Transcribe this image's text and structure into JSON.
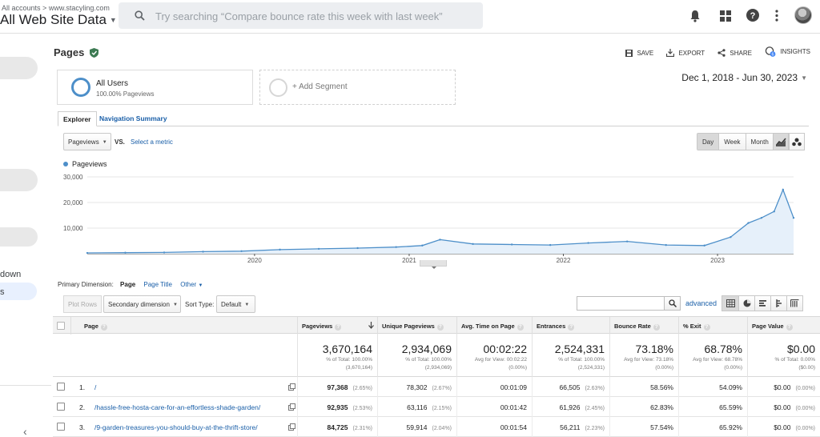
{
  "header": {
    "breadcrumb_accounts": "All accounts",
    "breadcrumb_sep": ">",
    "breadcrumb_site": "www.stacyling.com",
    "property": "All Web Site Data",
    "search_placeholder": "Try searching “Compare bounce rate this week with last week”",
    "icons": [
      "bell-icon",
      "apps-grid-icon",
      "help-icon",
      "more-vert-icon"
    ]
  },
  "sidebar": {
    "item_a": "down",
    "item_b": "s"
  },
  "page": {
    "title": "Pages",
    "actions": {
      "save": "SAVE",
      "export": "EXPORT",
      "share": "SHARE",
      "insights": "INSIGHTS",
      "insights_badge": "6"
    }
  },
  "segments": {
    "active_name": "All Users",
    "active_sub": "100.00% Pageviews",
    "add_label": "+ Add Segment"
  },
  "date_range": "Dec 1, 2018 - Jun 30, 2023",
  "tabs": {
    "explorer": "Explorer",
    "nav_summary": "Navigation Summary"
  },
  "chart_controls": {
    "metric": "Pageviews",
    "vs": "VS.",
    "select_metric": "Select a metric",
    "day": "Day",
    "week": "Week",
    "month": "Month"
  },
  "chart_data": {
    "type": "area",
    "series": [
      {
        "name": "Pageviews",
        "color": "#4d8fc9"
      }
    ],
    "y_ticks": [
      "30,000",
      "20,000",
      "10,000"
    ],
    "y_tick_values": [
      30000,
      20000,
      10000
    ],
    "ylim": [
      0,
      30000
    ],
    "x_ticks": [
      "2020",
      "2021",
      "2022",
      "2023"
    ],
    "x_start": "2018-12-01",
    "x_end": "2023-06-30",
    "x": [
      "2018-12-01",
      "2019-03-01",
      "2019-06-01",
      "2019-09-01",
      "2019-12-01",
      "2020-03-01",
      "2020-06-01",
      "2020-09-01",
      "2020-12-01",
      "2021-02-01",
      "2021-03-15",
      "2021-06-01",
      "2021-09-01",
      "2021-12-01",
      "2022-03-01",
      "2022-06-01",
      "2022-09-01",
      "2022-12-01",
      "2023-02-01",
      "2023-03-15",
      "2023-04-15",
      "2023-05-15",
      "2023-06-05",
      "2023-06-30"
    ],
    "values": [
      300,
      400,
      500,
      800,
      1000,
      1600,
      1900,
      2200,
      2600,
      3200,
      5500,
      3800,
      3600,
      3400,
      4200,
      4800,
      3400,
      3200,
      6500,
      12000,
      14000,
      16500,
      25000,
      14000
    ]
  },
  "primary_dimension": {
    "label": "Primary Dimension:",
    "current": "Page",
    "page_title": "Page Title",
    "other": "Other"
  },
  "table_tools": {
    "plot_rows": "Plot Rows",
    "secondary_dimension": "Secondary dimension",
    "sort_type_label": "Sort Type:",
    "sort_type_value": "Default",
    "advanced": "advanced"
  },
  "table": {
    "headers": {
      "page": "Page",
      "pageviews": "Pageviews",
      "unique": "Unique Pageviews",
      "avg_time": "Avg. Time on Page",
      "entrances": "Entrances",
      "bounce": "Bounce Rate",
      "exit": "% Exit",
      "value": "Page Value"
    },
    "totals": {
      "pageviews": {
        "big": "3,670,164",
        "sub1": "% of Total: 100.00%",
        "sub2": "(3,670,164)"
      },
      "unique": {
        "big": "2,934,069",
        "sub1": "% of Total: 100.00%",
        "sub2": "(2,934,069)"
      },
      "avg_time": {
        "big": "00:02:22",
        "sub1": "Avg for View: 00:02:22",
        "sub2": "(0.00%)"
      },
      "entrances": {
        "big": "2,524,331",
        "sub1": "% of Total: 100.00%",
        "sub2": "(2,524,331)"
      },
      "bounce": {
        "big": "73.18%",
        "sub1": "Avg for View: 73.18%",
        "sub2": "(0.00%)"
      },
      "exit": {
        "big": "68.78%",
        "sub1": "Avg for View: 68.78%",
        "sub2": "(0.00%)"
      },
      "value": {
        "big": "$0.00",
        "sub1": "% of Total: 0.00%",
        "sub2": "($0.00)"
      }
    },
    "rows": [
      {
        "num": "1.",
        "page": "/",
        "pageviews": "97,368",
        "pageviews_pct": "(2.65%)",
        "unique": "78,302",
        "unique_pct": "(2.67%)",
        "avg_time": "00:01:09",
        "entrances": "66,505",
        "entrances_pct": "(2.63%)",
        "bounce": "58.56%",
        "exit": "54.09%",
        "value": "$0.00",
        "value_pct": "(0.00%)"
      },
      {
        "num": "2.",
        "page": "/hassle-free-hosta-care-for-an-effortless-shade-garden/",
        "pageviews": "92,935",
        "pageviews_pct": "(2.53%)",
        "unique": "63,116",
        "unique_pct": "(2.15%)",
        "avg_time": "00:01:42",
        "entrances": "61,926",
        "entrances_pct": "(2.45%)",
        "bounce": "62.83%",
        "exit": "65.59%",
        "value": "$0.00",
        "value_pct": "(0.00%)"
      },
      {
        "num": "3.",
        "page": "/9-garden-treasures-you-should-buy-at-the-thrift-store/",
        "pageviews": "84,725",
        "pageviews_pct": "(2.31%)",
        "unique": "59,914",
        "unique_pct": "(2.04%)",
        "avg_time": "00:01:54",
        "entrances": "56,211",
        "entrances_pct": "(2.23%)",
        "bounce": "57.54%",
        "exit": "65.92%",
        "value": "$0.00",
        "value_pct": "(0.00%)"
      }
    ]
  }
}
